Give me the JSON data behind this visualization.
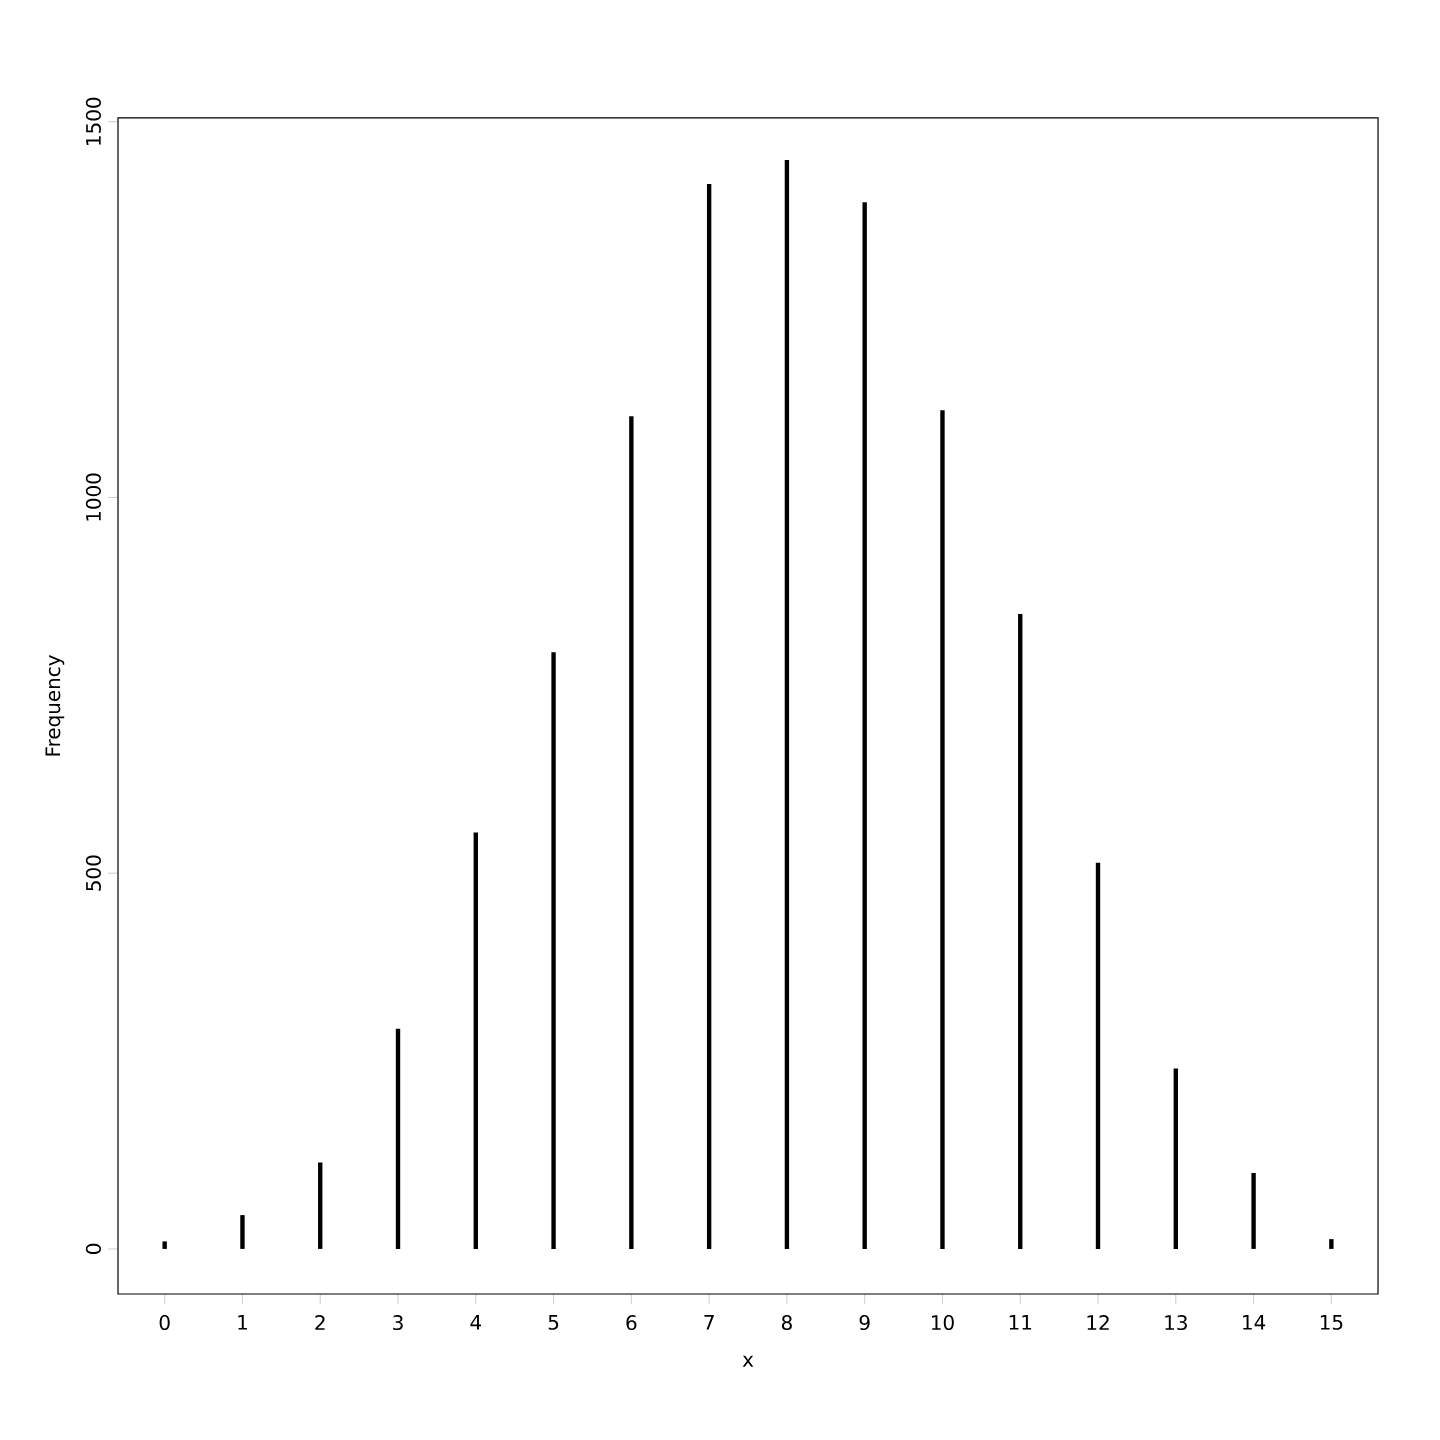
{
  "chart_data": {
    "type": "bar",
    "xlabel": "x",
    "ylabel": "Frequency",
    "color": "#000000",
    "categories": [
      "0",
      "1",
      "2",
      "3",
      "4",
      "5",
      "6",
      "7",
      "8",
      "9",
      "10",
      "11",
      "12",
      "13",
      "14",
      "15"
    ],
    "values": [
      10,
      45,
      115,
      293,
      554,
      794,
      1108,
      1417,
      1449,
      1393,
      1116,
      845,
      514,
      240,
      101,
      13
    ],
    "ylim": [
      -60,
      1505
    ],
    "yticks": [
      0,
      500,
      1000,
      1500
    ]
  }
}
